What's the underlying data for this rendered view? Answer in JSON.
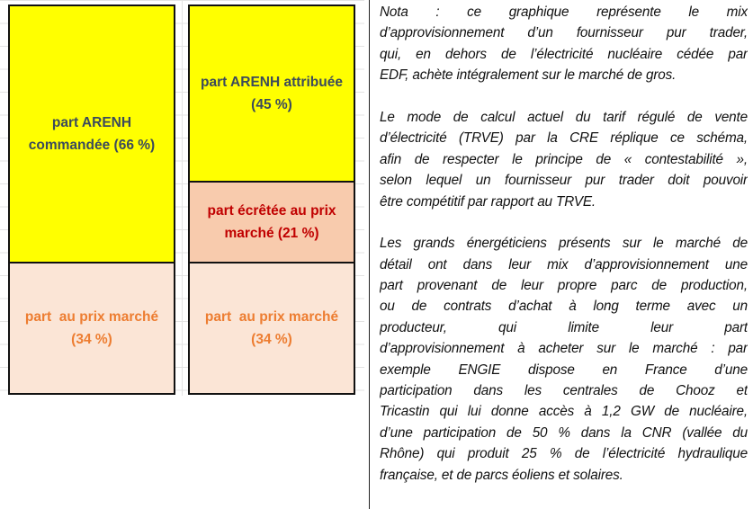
{
  "diagram": {
    "columns": [
      {
        "segments": [
          {
            "label": "part ARENH commandée (66 %)",
            "share": 66,
            "fill": "#ffff00",
            "text_color": "#3b4a5c"
          },
          {
            "label": "part  au prix marché (34 %)",
            "share": 34,
            "fill": "#fbe5d6",
            "text_color": "#ed7d31"
          }
        ]
      },
      {
        "segments": [
          {
            "label": "part ARENH attribuée (45 %)",
            "share": 45,
            "fill": "#ffff00",
            "text_color": "#3b4a5c"
          },
          {
            "label": "part écrêtée au prix marché (21 %)",
            "share": 21,
            "fill": "#f8cbad",
            "text_color": "#c00000"
          },
          {
            "label": "part  au prix marché (34 %)",
            "share": 34,
            "fill": "#fbe5d6",
            "text_color": "#ed7d31"
          }
        ]
      }
    ]
  },
  "notes": {
    "paragraphs": [
      [
        "Nota : ce graphique représente le mix",
        "d’approvisionnement d’un fournisseur pur trader,",
        "qui, en dehors de l’électricité nucléaire cédée par",
        "EDF, achète intégralement sur le marché de gros."
      ],
      [
        "Le mode de calcul actuel du tarif régulé de vente",
        "d’électricité (TRVE) par la CRE réplique ce schéma,",
        "afin de respecter le principe de « contestabilité »,",
        "selon lequel un fournisseur pur trader doit pouvoir",
        "être compétitif par rapport au TRVE."
      ],
      [
        "Les grands énergéticiens présents sur le marché de",
        "détail ont dans leur mix d’approvisionnement une",
        "part provenant de leur propre parc de production,",
        "ou de contrats d’achat à long terme avec un",
        "producteur, qui limite leur part",
        "d’approvisionnement à acheter sur le marché : par",
        "exemple ENGIE dispose en France d’une",
        "participation dans les centrales de Chooz et",
        "Tricastin qui lui donne accès à 1,2 GW de nucléaire,",
        "d’une participation de 50 % dans la CNR (vallée du",
        "Rhône) qui produit 25 % de l’électricité hydraulique",
        "française, et de parcs éoliens et solaires."
      ]
    ]
  }
}
